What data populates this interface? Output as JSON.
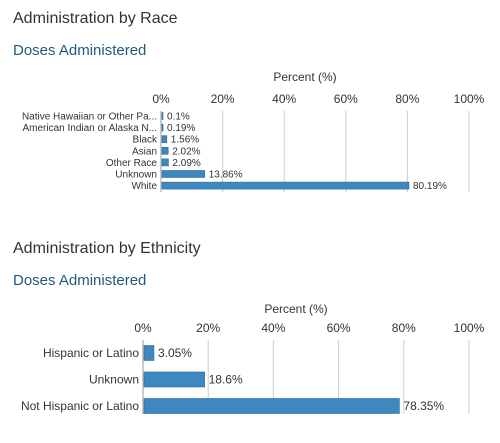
{
  "sections": [
    {
      "heading": "Administration by Race",
      "subheading": "Doses Administered"
    },
    {
      "heading": "Administration by Ethnicity",
      "subheading": "Doses Administered"
    }
  ],
  "chart_data": [
    {
      "type": "bar",
      "orientation": "horizontal",
      "title": "Administration by Race",
      "subtitle": "Doses Administered",
      "xlabel": "Percent (%)",
      "xlim": [
        0,
        100
      ],
      "ticks": [
        "0%",
        "20%",
        "40%",
        "60%",
        "80%",
        "100%"
      ],
      "categories": [
        "Native Hawaiian or Other Pa...",
        "American Indian or Alaska N...",
        "Black",
        "Asian",
        "Other Race",
        "Unknown",
        "White"
      ],
      "values": [
        0.1,
        0.19,
        1.56,
        2.02,
        2.09,
        13.86,
        80.19
      ],
      "value_labels": [
        "0.1%",
        "0.19%",
        "1.56%",
        "2.02%",
        "2.09%",
        "13.86%",
        "80.19%"
      ],
      "bar_color": "#3f87bf",
      "grid": true
    },
    {
      "type": "bar",
      "orientation": "horizontal",
      "title": "Administration by Ethnicity",
      "subtitle": "Doses Administered",
      "xlabel": "Percent (%)",
      "xlim": [
        0,
        100
      ],
      "ticks": [
        "0%",
        "20%",
        "40%",
        "60%",
        "80%",
        "100%"
      ],
      "categories": [
        "Hispanic or Latino",
        "Unknown",
        "Not Hispanic or Latino"
      ],
      "values": [
        3.05,
        18.6,
        78.35
      ],
      "value_labels": [
        "3.05%",
        "18.6%",
        "78.35%"
      ],
      "bar_color": "#3f87bf",
      "grid": true
    }
  ]
}
